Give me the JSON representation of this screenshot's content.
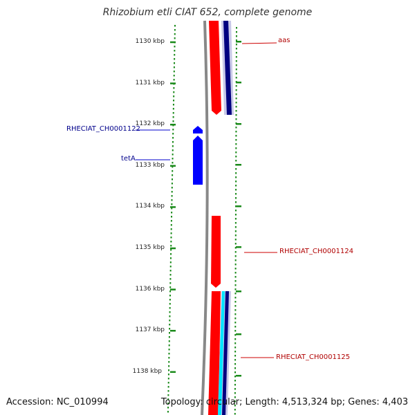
{
  "title": "Rhizobium etli CIAT 652, complete genome",
  "scale": {
    "unit": "kbp",
    "ticks": [
      1130,
      1131,
      1132,
      1133,
      1134,
      1135,
      1136,
      1137,
      1138
    ],
    "tick_labels": [
      "1130 kbp",
      "1131 kbp",
      "1132 kbp",
      "1133 kbp",
      "1134 kbp",
      "1135 kbp",
      "1136 kbp",
      "1137 kbp",
      "1138 kbp"
    ]
  },
  "genes": [
    {
      "name": "RHECIAT_CH0001122",
      "side": "left",
      "color": "#00008b"
    },
    {
      "name": "tetA",
      "side": "left",
      "color": "#00008b"
    },
    {
      "name": "aas",
      "side": "right",
      "color": "#b00000"
    },
    {
      "name": "RHECIAT_CH0001124",
      "side": "right",
      "color": "#b00000"
    },
    {
      "name": "RHECIAT_CH0001125",
      "side": "right",
      "color": "#b00000"
    }
  ],
  "colors": {
    "backbone": "#888888",
    "forward_cds": "#ff0000",
    "reverse_cds": "#0000ff",
    "dark_blue_feature": "#000080",
    "cyan_feature": "#00e5ff",
    "gc_dots": "#1a8a1a"
  },
  "footer": {
    "accession": "Accession: NC_010994",
    "summary": "Topology: circular; Length: 4,513,324 bp; Genes: 4,403"
  }
}
